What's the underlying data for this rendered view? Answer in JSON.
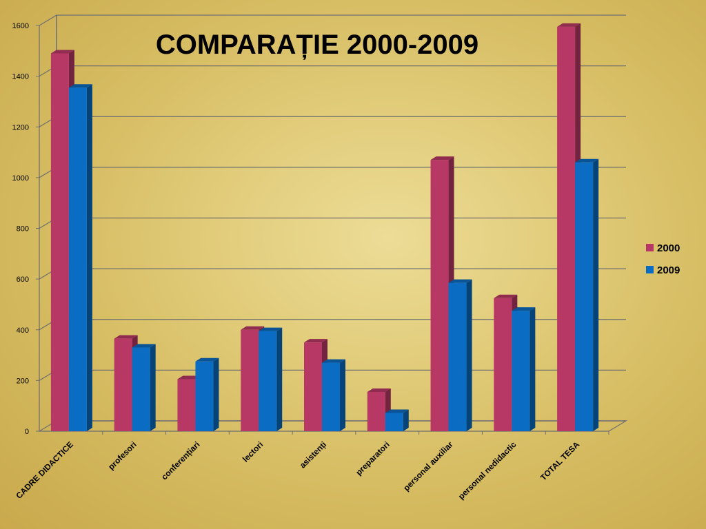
{
  "chart_data": {
    "type": "bar",
    "title": "COMPARAȚIE 2000-2009",
    "categories": [
      "CADRE DIDACTICE",
      "profesori",
      "conferențiari",
      "lectori",
      "asistenți",
      "preparatori",
      "personal auxiliar",
      "personal nedidactic",
      "TOTAL TESA"
    ],
    "series": [
      {
        "name": "2000",
        "color": "#b83865",
        "values": [
          1490,
          365,
          205,
          400,
          350,
          155,
          1070,
          525,
          1595
        ]
      },
      {
        "name": "2009",
        "color": "#0a6cc2",
        "values": [
          1355,
          330,
          275,
          395,
          270,
          72,
          585,
          475,
          1060
        ]
      }
    ],
    "yticks": [
      "0",
      "200",
      "400",
      "600",
      "800",
      "1000",
      "1200",
      "1400",
      "1600"
    ],
    "ylim": [
      0,
      1600
    ],
    "grid": true,
    "legend_position": "right",
    "xlabel": "",
    "ylabel": ""
  }
}
